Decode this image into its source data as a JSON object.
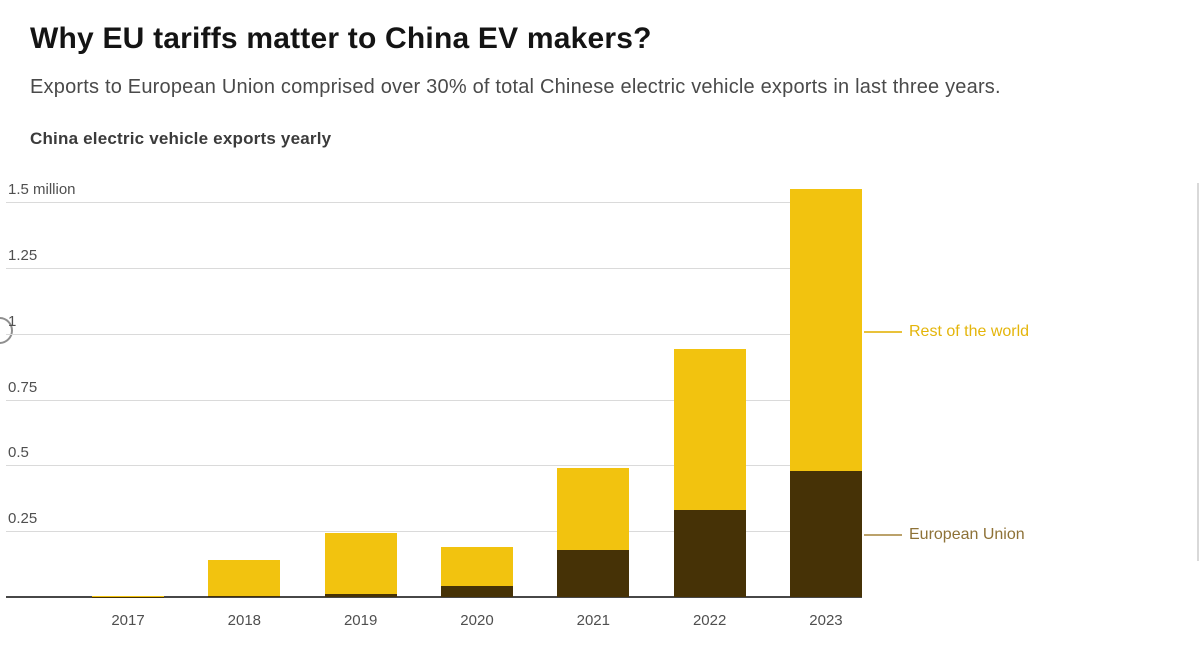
{
  "page": {
    "title": "Why EU tariffs matter to China EV makers?",
    "subtitle": "Exports to European Union comprised over 30% of total Chinese electric vehicle exports in last three years."
  },
  "chart_data": {
    "type": "bar",
    "stacked": true,
    "title": "China electric vehicle exports yearly",
    "xlabel": "",
    "ylabel": "million vehicles",
    "ylim": [
      0,
      1.5
    ],
    "grid": true,
    "legend_position": "right-annotations",
    "categories": [
      "2017",
      "2018",
      "2019",
      "2020",
      "2021",
      "2022",
      "2023"
    ],
    "series": [
      {
        "name": "European Union",
        "color": "#463206",
        "values": [
          0.001,
          0.005,
          0.012,
          0.04,
          0.18,
          0.33,
          0.48
        ]
      },
      {
        "name": "Rest of the world",
        "color": "#F2C30F",
        "values": [
          0.003,
          0.135,
          0.23,
          0.15,
          0.31,
          0.61,
          1.07
        ]
      }
    ],
    "totals": [
      0.004,
      0.14,
      0.242,
      0.19,
      0.49,
      0.94,
      1.55
    ],
    "yticks": [
      {
        "value": 0.25,
        "label": "0.25"
      },
      {
        "value": 0.5,
        "label": "0.5"
      },
      {
        "value": 0.75,
        "label": "0.75"
      },
      {
        "value": 1,
        "label": "1"
      },
      {
        "value": 1.25,
        "label": "1.25"
      },
      {
        "value": 1.5,
        "label": "1.5 million"
      }
    ],
    "annotations": [
      {
        "text": "Rest of the world",
        "color": "#E4B50B",
        "line_color": "#E9C23A"
      },
      {
        "text": "European Union",
        "color": "#8E7237",
        "line_color": "#BBA26B"
      }
    ]
  }
}
